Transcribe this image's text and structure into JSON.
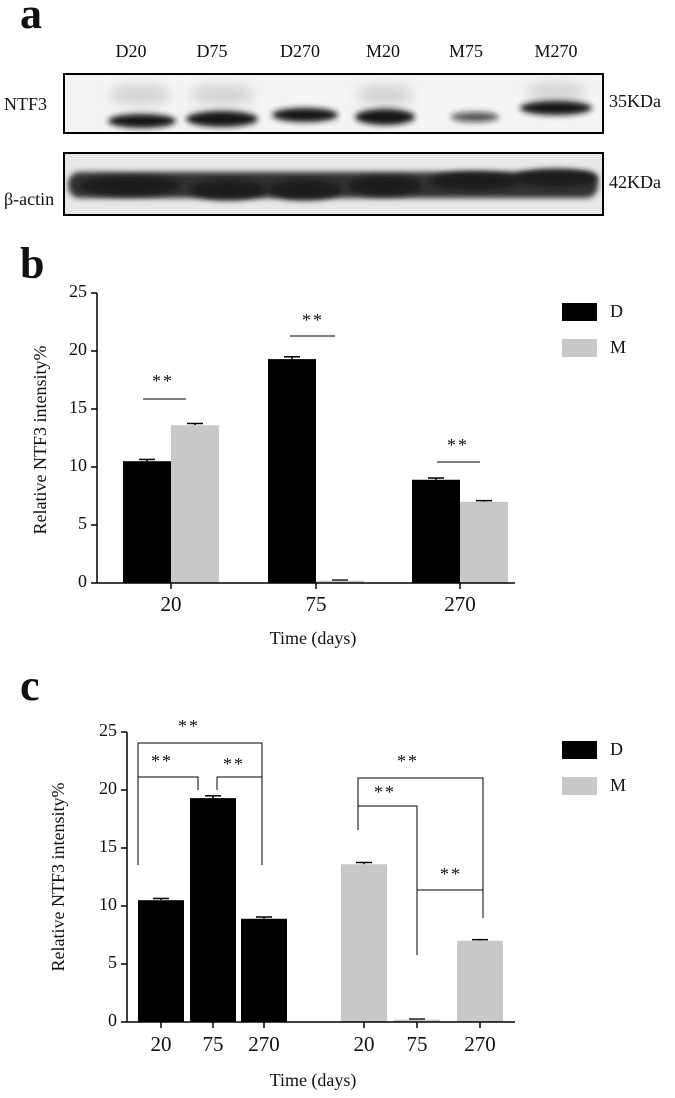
{
  "panel_a": {
    "label": "a",
    "lanes": [
      "D20",
      "D75",
      "D270",
      "M20",
      "M75",
      "M270"
    ],
    "rows": [
      {
        "name": "NTF3",
        "size": "35KDa"
      },
      {
        "name": "β-actin",
        "size": "42KDa"
      }
    ]
  },
  "chart_data": [
    {
      "type": "bar",
      "panel_label": "b",
      "group_by": "category",
      "ylabel": "Relative NTF3  intensity%",
      "xlabel": "Time (days)",
      "categories": [
        "20",
        "75",
        "270"
      ],
      "series": [
        {
          "name": "D",
          "color": "#000000",
          "values": [
            10.5,
            19.3,
            8.9
          ],
          "errors": [
            0.15,
            0.2,
            0.15
          ]
        },
        {
          "name": "M",
          "color": "#c8c8c8",
          "values": [
            13.6,
            0.2,
            7.0
          ],
          "errors": [
            0.15,
            0.05,
            0.1
          ]
        }
      ],
      "ylim": [
        0,
        25
      ],
      "yticks": [
        0,
        5,
        10,
        15,
        20,
        25
      ],
      "annotations": [
        "**",
        "**",
        "**"
      ]
    },
    {
      "type": "bar",
      "panel_label": "c",
      "group_by": "series",
      "ylabel": "Relative NTF3  intensity%",
      "xlabel": "Time (days)",
      "categories": [
        "20",
        "75",
        "270"
      ],
      "series": [
        {
          "name": "D",
          "color": "#000000",
          "values": [
            10.5,
            19.3,
            8.9
          ],
          "errors": [
            0.15,
            0.2,
            0.15
          ]
        },
        {
          "name": "M",
          "color": "#c8c8c8",
          "values": [
            13.6,
            0.2,
            7.0
          ],
          "errors": [
            0.15,
            0.05,
            0.1
          ]
        }
      ],
      "ylim": [
        0,
        25
      ],
      "yticks": [
        0,
        5,
        10,
        15,
        20,
        25
      ],
      "annotations": [
        "**",
        "**",
        "**",
        "**",
        "**",
        "**"
      ]
    }
  ]
}
